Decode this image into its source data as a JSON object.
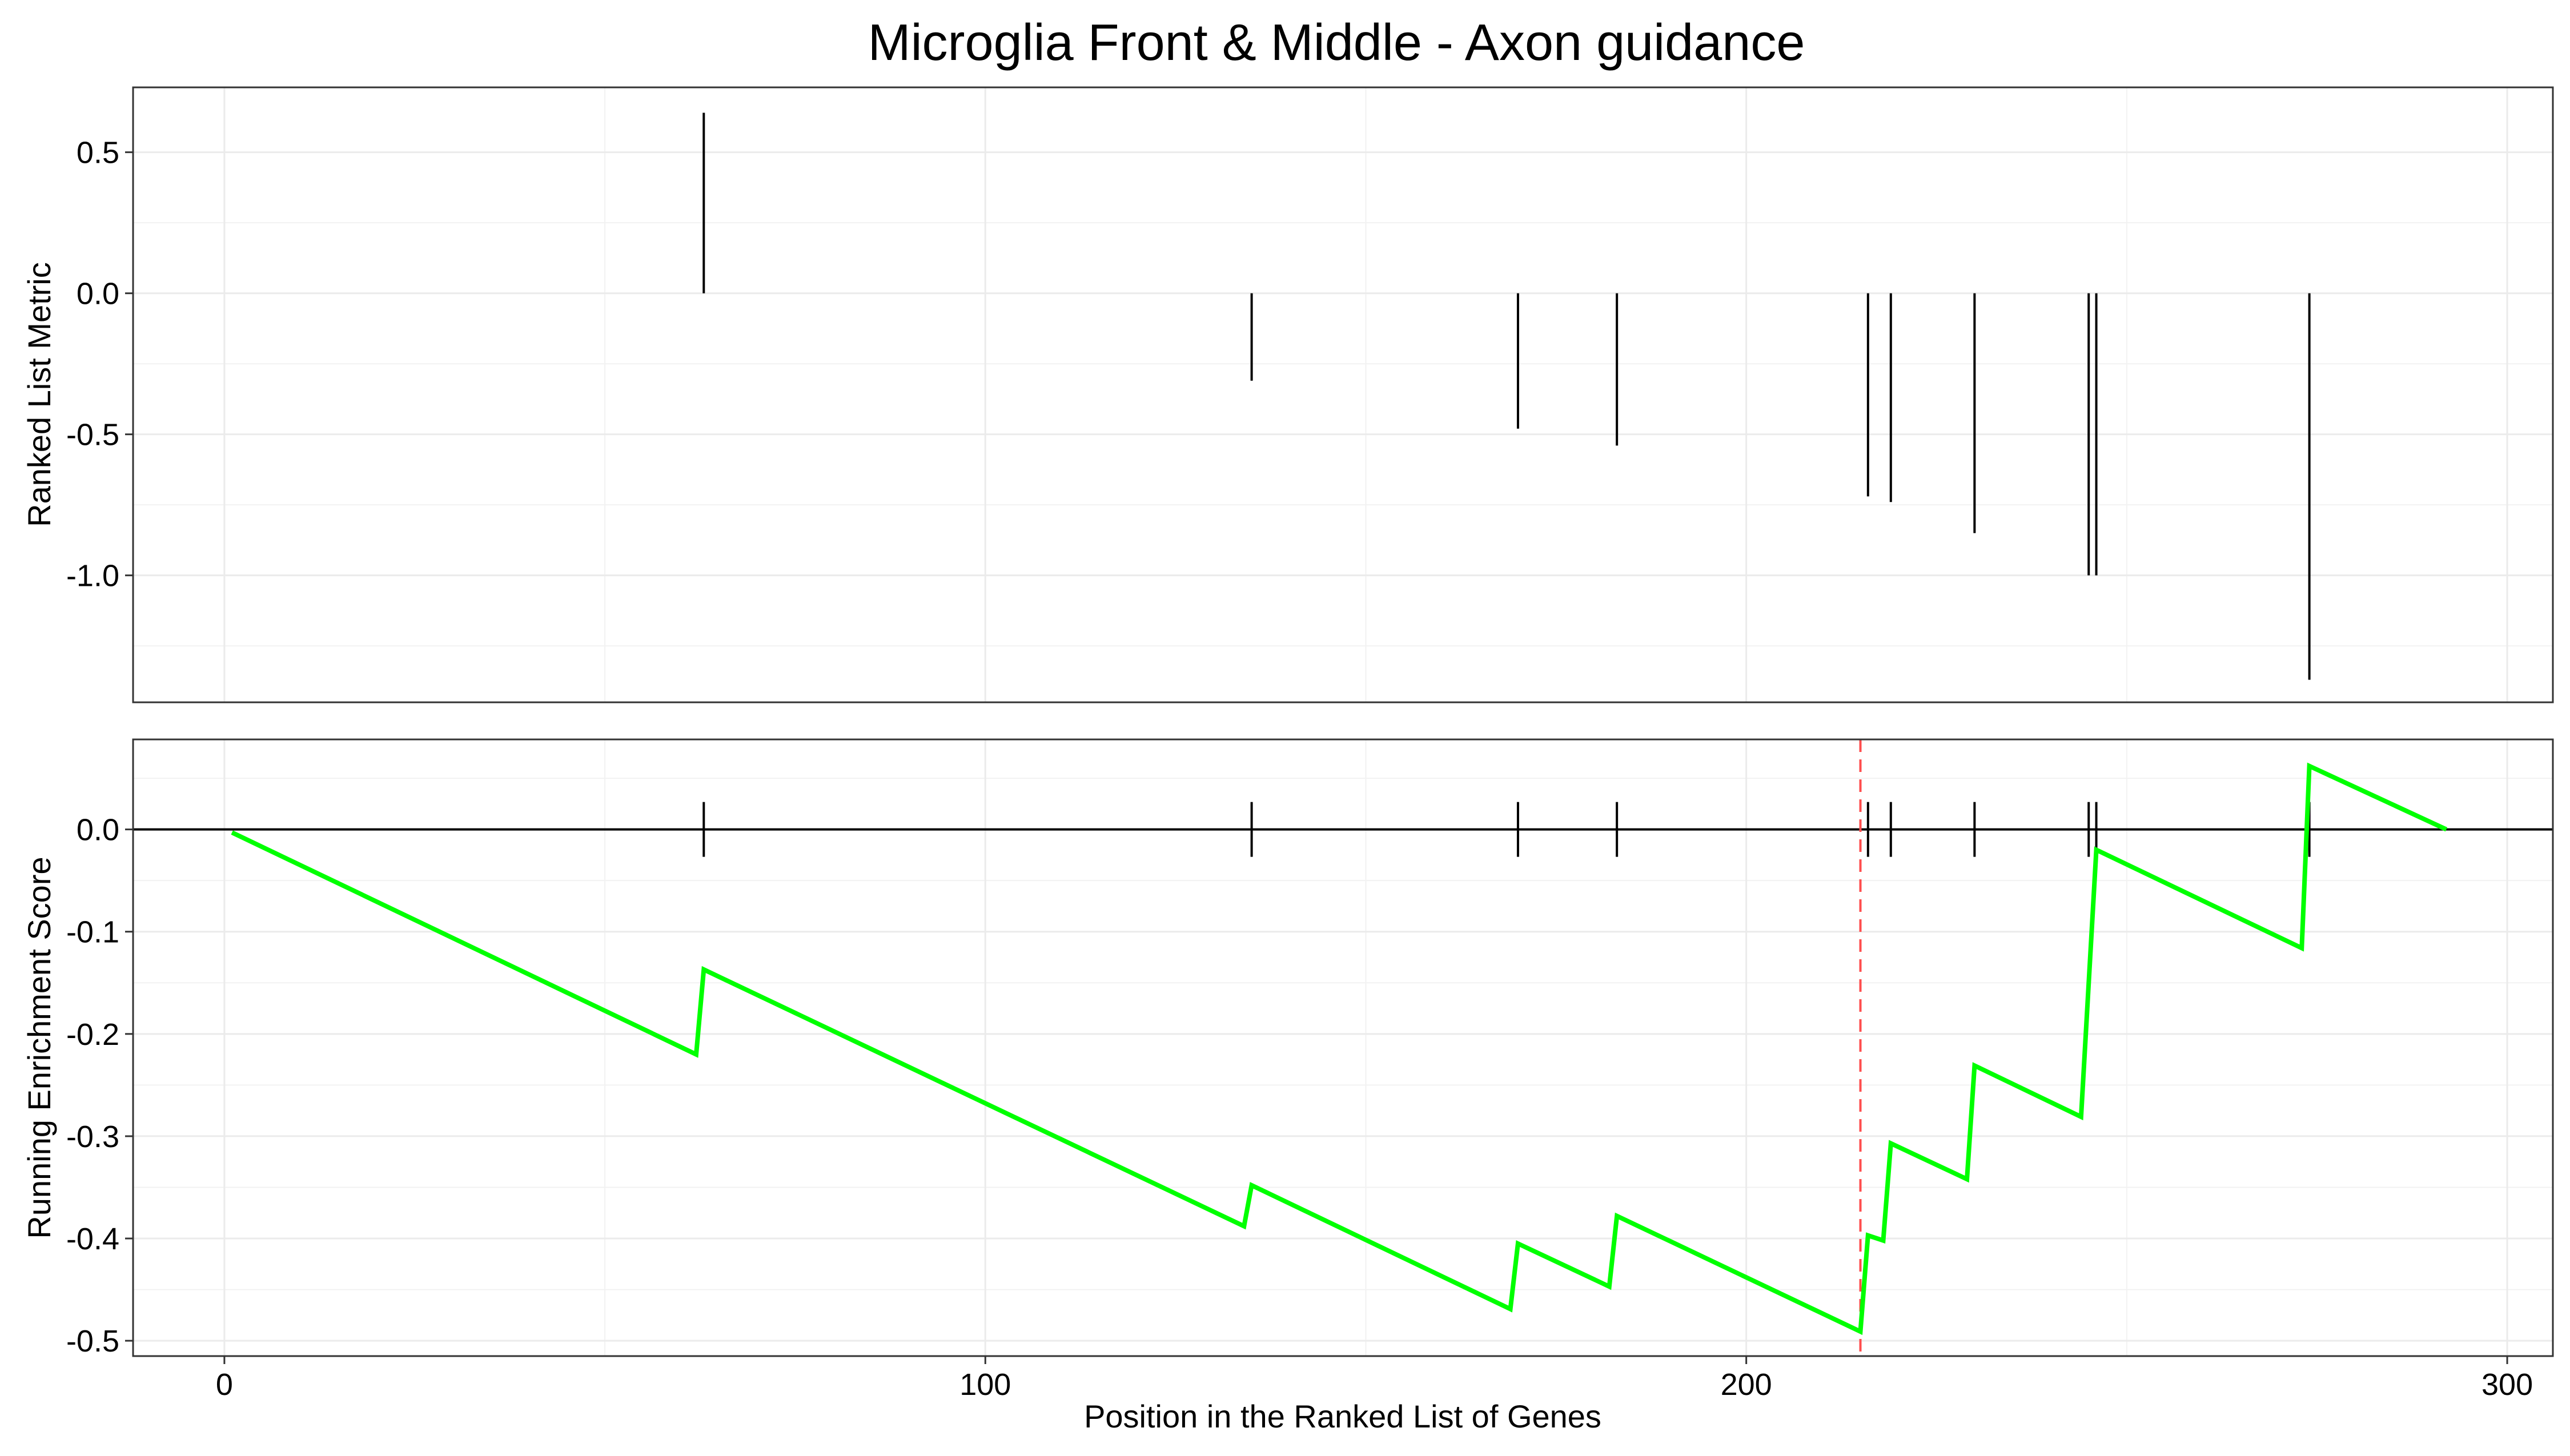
{
  "chart_data": [
    {
      "type": "line",
      "panel": "top",
      "title": "Microglia Front & Middle - Axon guidance",
      "xlabel": "",
      "ylabel": "Ranked List Metric",
      "xlim": [
        -12,
        306
      ],
      "ylim": [
        -1.45,
        0.73
      ],
      "y_ticks": [
        0.5,
        0.0,
        -0.5,
        -1.0
      ],
      "y_tick_labels": [
        "0.5",
        "0.0",
        "-0.5",
        "-1.0"
      ],
      "grid": true,
      "series": [
        {
          "style": "vertical-segments",
          "color": "#000000",
          "x": [
            63,
            135,
            170,
            183,
            216,
            219,
            230,
            245,
            246,
            274
          ],
          "values": [
            0.64,
            -0.31,
            -0.48,
            -0.54,
            -0.72,
            -0.74,
            -0.85,
            -1.0,
            -1.0,
            -1.37
          ]
        }
      ]
    },
    {
      "type": "line",
      "panel": "bottom",
      "title": "",
      "xlabel": "Position in the Ranked List of Genes",
      "ylabel": "Running Enrichment Score",
      "xlim": [
        -12,
        306
      ],
      "ylim": [
        -0.515,
        0.088
      ],
      "x_ticks": [
        0,
        100,
        200,
        300
      ],
      "x_tick_labels": [
        "0",
        "100",
        "200",
        "300"
      ],
      "y_ticks": [
        0.0,
        -0.1,
        -0.2,
        -0.3,
        -0.4,
        -0.5
      ],
      "y_tick_labels": [
        "0.0",
        "-0.1",
        "-0.2",
        "-0.3",
        "-0.4",
        "-0.5"
      ],
      "grid": true,
      "hline": 0.0,
      "vline": 215,
      "vline_color": "#ff4d4d",
      "rug_x": [
        63,
        135,
        170,
        183,
        216,
        219,
        230,
        245,
        246,
        274
      ],
      "rug_color": "#000000",
      "series": [
        {
          "color": "#00ff00",
          "x": [
            1,
            62,
            63,
            134,
            135,
            169,
            170,
            182,
            183,
            215,
            216,
            218,
            219,
            229,
            230,
            244,
            246,
            273,
            274,
            292
          ],
          "values": [
            -0.003,
            -0.22,
            -0.137,
            -0.388,
            -0.348,
            -0.469,
            -0.405,
            -0.447,
            -0.378,
            -0.491,
            -0.397,
            -0.402,
            -0.307,
            -0.342,
            -0.231,
            -0.281,
            -0.02,
            -0.116,
            0.062,
            0.0
          ]
        }
      ]
    }
  ]
}
